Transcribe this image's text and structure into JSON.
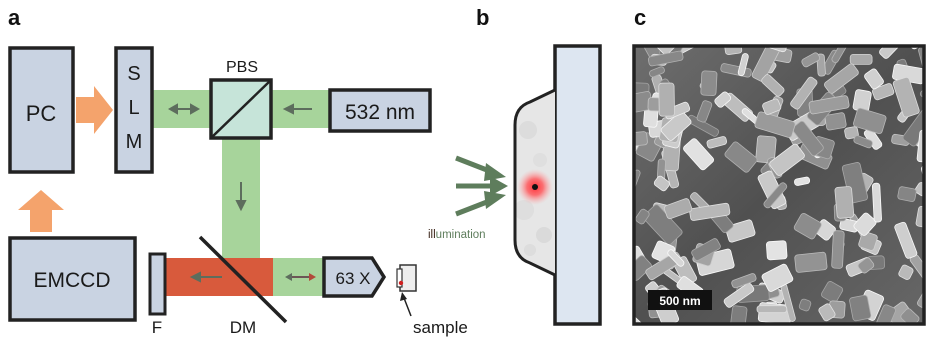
{
  "panels": {
    "a": "a",
    "b": "b",
    "c": "c"
  },
  "components": {
    "pc": "PC",
    "slm": [
      "S",
      "L",
      "M"
    ],
    "pbs": "PBS",
    "laser": "532 nm",
    "emccd": "EMCCD",
    "filter": "F",
    "dichroic": "DM",
    "objective": "63 X",
    "sample": "sample"
  },
  "illumination": {
    "prefix": "ill",
    "rest": "umination"
  },
  "scale_bar": "500 nm",
  "colors": {
    "box_fill": "#c9d3e2",
    "green_beam": "#a7d49b",
    "red_beam": "#d85a3c",
    "orange_arrow": "#f4a36c",
    "illum_arrow": "#5e7d5c",
    "slide": "#dde6f1",
    "hotspot": "#e8202a"
  }
}
